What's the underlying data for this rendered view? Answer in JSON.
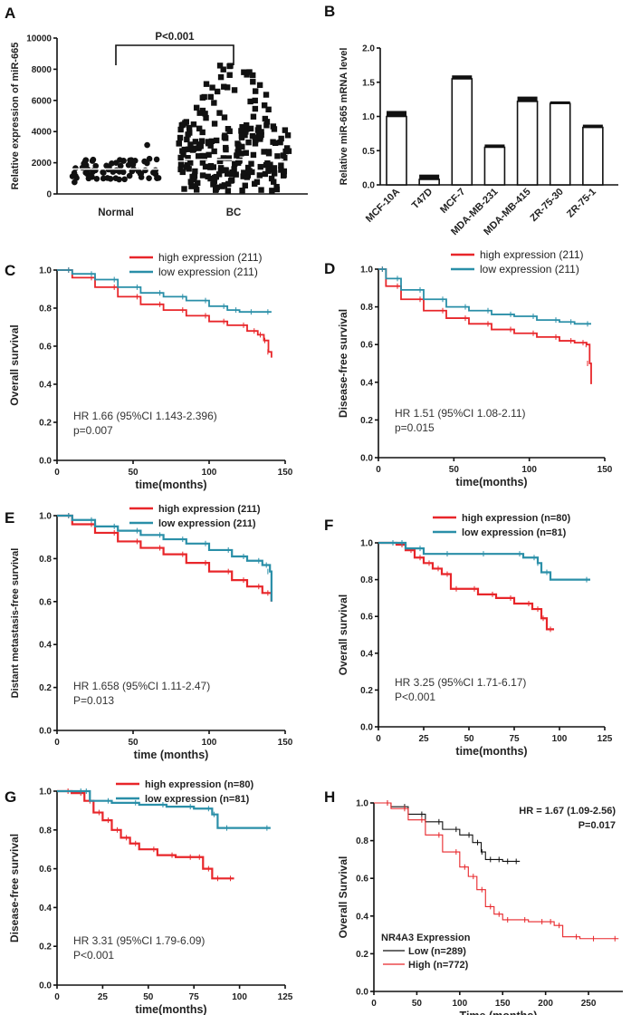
{
  "figure": {
    "panels": [
      "A",
      "B",
      "C",
      "D",
      "E",
      "F",
      "G",
      "H"
    ]
  },
  "chart_data": [
    {
      "panel": "A",
      "type": "scatter",
      "ylabel": "Relative expression of miR-665",
      "categories": [
        "Normal",
        "BC"
      ],
      "y_ticks": [
        "0",
        "2000",
        "4000",
        "6000",
        "8000",
        "10000"
      ],
      "ylim": [
        0,
        10000
      ],
      "means": [
        1600,
        2200
      ],
      "ranges": [
        [
          150,
          3900
        ],
        [
          80,
          8400
        ]
      ],
      "significance": "P<0.001"
    },
    {
      "panel": "B",
      "type": "bar",
      "ylabel": "Relative miR-665 mRNA level",
      "categories": [
        "MCF-10A",
        "T47D",
        "MCF-7",
        "MDA-MB-231",
        "MDA-MB-415",
        "ZR-75-30",
        "ZR-75-1"
      ],
      "values": [
        1.0,
        0.08,
        1.55,
        0.55,
        1.22,
        1.19,
        0.84
      ],
      "errors": [
        0.08,
        0.07,
        0.05,
        0.04,
        0.07,
        0.03,
        0.04
      ],
      "y_ticks": [
        "0.0",
        "0.5",
        "1.0",
        "1.5",
        "2.0"
      ],
      "ylim": [
        0,
        2.0
      ]
    },
    {
      "panel": "C",
      "type": "line",
      "ylabel": "Overall survival",
      "xlabel": "time(months)",
      "xlim": [
        0,
        150
      ],
      "ylim": [
        0,
        1.0
      ],
      "x_ticks": [
        "0",
        "50",
        "100",
        "150"
      ],
      "y_ticks": [
        "0.0",
        "0.2",
        "0.4",
        "0.6",
        "0.8",
        "1.0"
      ],
      "series": [
        {
          "name": "high expression (211)",
          "color": "#e8262a",
          "x": [
            0,
            10,
            25,
            40,
            55,
            70,
            85,
            100,
            112,
            125,
            132,
            136,
            139,
            141
          ],
          "y": [
            1.0,
            0.96,
            0.91,
            0.86,
            0.82,
            0.79,
            0.76,
            0.73,
            0.71,
            0.68,
            0.66,
            0.63,
            0.57,
            0.54
          ]
        },
        {
          "name": "low expression (211)",
          "color": "#2a8fa8",
          "x": [
            0,
            10,
            25,
            40,
            55,
            70,
            85,
            100,
            112,
            120,
            130,
            141
          ],
          "y": [
            1.0,
            0.98,
            0.95,
            0.91,
            0.88,
            0.86,
            0.84,
            0.81,
            0.79,
            0.78,
            0.78,
            0.78
          ]
        }
      ],
      "annotations": [
        "HR  1.66 (95%CI 1.143-2.396)",
        "p=0.007"
      ]
    },
    {
      "panel": "D",
      "type": "line",
      "ylabel": "Disease-free survival",
      "xlabel": "time(months)",
      "xlim": [
        0,
        150
      ],
      "ylim": [
        0,
        1.0
      ],
      "x_ticks": [
        "0",
        "50",
        "100",
        "150"
      ],
      "y_ticks": [
        "0.0",
        "0.2",
        "0.4",
        "0.6",
        "0.8",
        "1.0"
      ],
      "series": [
        {
          "name": "high expression (211)",
          "color": "#e8262a",
          "x": [
            0,
            5,
            15,
            30,
            45,
            60,
            75,
            90,
            105,
            120,
            130,
            138,
            140,
            141
          ],
          "y": [
            1.0,
            0.91,
            0.84,
            0.78,
            0.74,
            0.71,
            0.68,
            0.66,
            0.64,
            0.62,
            0.61,
            0.6,
            0.5,
            0.39
          ]
        },
        {
          "name": "low expression (211)",
          "color": "#2a8fa8",
          "x": [
            0,
            5,
            15,
            30,
            45,
            60,
            75,
            90,
            105,
            120,
            130,
            141
          ],
          "y": [
            1.0,
            0.95,
            0.89,
            0.84,
            0.8,
            0.78,
            0.76,
            0.75,
            0.73,
            0.72,
            0.71,
            0.71
          ]
        }
      ],
      "annotations": [
        "HR  1.51 (95%CI 1.08-2.11)",
        "p=0.015"
      ]
    },
    {
      "panel": "E",
      "type": "line",
      "ylabel": "Distant metastasis-free survival",
      "xlabel": "time (months)",
      "xlim": [
        0,
        150
      ],
      "ylim": [
        0,
        1.0
      ],
      "x_ticks": [
        "0",
        "50",
        "100",
        "150"
      ],
      "y_ticks": [
        "0.0",
        "0.2",
        "0.4",
        "0.6",
        "0.8",
        "1.0"
      ],
      "series": [
        {
          "name": "high expression (211)",
          "color": "#e8262a",
          "x": [
            0,
            10,
            25,
            40,
            55,
            70,
            85,
            100,
            115,
            125,
            135,
            141
          ],
          "y": [
            1.0,
            0.96,
            0.92,
            0.88,
            0.85,
            0.82,
            0.78,
            0.74,
            0.7,
            0.67,
            0.64,
            0.6
          ]
        },
        {
          "name": "low expression (211)",
          "color": "#2a8fa8",
          "x": [
            0,
            10,
            25,
            40,
            55,
            70,
            85,
            100,
            115,
            125,
            135,
            140,
            141
          ],
          "y": [
            1.0,
            0.98,
            0.95,
            0.93,
            0.91,
            0.89,
            0.87,
            0.84,
            0.81,
            0.79,
            0.77,
            0.74,
            0.6
          ]
        }
      ],
      "annotations": [
        "HR 1.658 (95%CI 1.11-2.47)",
        "P=0.013"
      ]
    },
    {
      "panel": "F",
      "type": "line",
      "ylabel": "Overall survival",
      "xlabel": "time(months)",
      "xlim": [
        0,
        125
      ],
      "ylim": [
        0,
        1.0
      ],
      "x_ticks": [
        "0",
        "25",
        "50",
        "75",
        "100",
        "125"
      ],
      "y_ticks": [
        "0.0",
        "0.2",
        "0.4",
        "0.6",
        "0.8",
        "1.0"
      ],
      "series": [
        {
          "name": "high expression (n=80)",
          "color": "#e8262a",
          "x": [
            0,
            10,
            15,
            20,
            25,
            30,
            35,
            40,
            45,
            55,
            65,
            75,
            85,
            90,
            93,
            97
          ],
          "y": [
            1.0,
            0.99,
            0.96,
            0.92,
            0.89,
            0.86,
            0.83,
            0.75,
            0.75,
            0.72,
            0.7,
            0.67,
            0.64,
            0.59,
            0.53,
            0.53
          ]
        },
        {
          "name": "low expression (n=81)",
          "color": "#2a8fa8",
          "x": [
            0,
            10,
            15,
            25,
            40,
            60,
            80,
            88,
            90,
            95,
            117
          ],
          "y": [
            1.0,
            1.0,
            0.97,
            0.94,
            0.94,
            0.94,
            0.92,
            0.89,
            0.84,
            0.8,
            0.8
          ]
        }
      ],
      "annotations": [
        "HR 3.25 (95%CI 1.71-6.17)",
        "P<0.001"
      ]
    },
    {
      "panel": "G",
      "type": "line",
      "ylabel": "Disease-free survival",
      "xlabel": "time(months)",
      "xlim": [
        0,
        125
      ],
      "ylim": [
        0,
        1.0
      ],
      "x_ticks": [
        "0",
        "25",
        "50",
        "75",
        "100",
        "125"
      ],
      "y_ticks": [
        "0.0",
        "0.2",
        "0.4",
        "0.6",
        "0.8",
        "1.0"
      ],
      "series": [
        {
          "name": "high expression (n=80)",
          "color": "#e8262a",
          "x": [
            0,
            8,
            15,
            20,
            25,
            30,
            35,
            40,
            45,
            55,
            65,
            75,
            80,
            85,
            90,
            97
          ],
          "y": [
            1.0,
            0.99,
            0.95,
            0.89,
            0.85,
            0.8,
            0.76,
            0.73,
            0.7,
            0.67,
            0.66,
            0.66,
            0.6,
            0.55,
            0.55,
            0.55
          ]
        },
        {
          "name": "low expression (n=81)",
          "color": "#2a8fa8",
          "x": [
            0,
            15,
            18,
            30,
            45,
            60,
            75,
            85,
            88,
            95,
            117
          ],
          "y": [
            1.0,
            1.0,
            0.95,
            0.94,
            0.93,
            0.92,
            0.91,
            0.88,
            0.81,
            0.81,
            0.81
          ]
        }
      ],
      "annotations": [
        "HR 3.31 (95%CI 1.79-6.09)",
        "P<0.001"
      ]
    },
    {
      "panel": "H",
      "type": "line",
      "ylabel": "Overall Survival",
      "xlabel": "Time (months)",
      "xlim": [
        0,
        290
      ],
      "ylim": [
        0,
        1.0
      ],
      "x_ticks": [
        "0",
        "50",
        "100",
        "150",
        "200",
        "250"
      ],
      "y_ticks": [
        "0.0",
        "0.2",
        "0.4",
        "0.6",
        "0.8",
        "1.0"
      ],
      "legend_title": "NR4A3 Expression",
      "series": [
        {
          "name": "Low  (n=289)",
          "color": "#111111",
          "x": [
            0,
            20,
            40,
            60,
            80,
            100,
            115,
            125,
            130,
            140,
            150,
            160,
            170
          ],
          "y": [
            1.0,
            0.98,
            0.94,
            0.9,
            0.86,
            0.83,
            0.79,
            0.74,
            0.7,
            0.7,
            0.69,
            0.69,
            0.69
          ]
        },
        {
          "name": "High  (n=772)",
          "color": "#e8262a",
          "x": [
            0,
            20,
            40,
            60,
            80,
            100,
            110,
            120,
            130,
            140,
            150,
            160,
            180,
            200,
            210,
            220,
            240,
            260,
            285
          ],
          "y": [
            1.0,
            0.97,
            0.91,
            0.83,
            0.74,
            0.66,
            0.61,
            0.54,
            0.45,
            0.41,
            0.38,
            0.38,
            0.37,
            0.37,
            0.35,
            0.29,
            0.28,
            0.28,
            0.28
          ]
        }
      ],
      "annotations": [
        "HR = 1.67 (1.09-2.56)",
        "P=0.017"
      ]
    }
  ]
}
